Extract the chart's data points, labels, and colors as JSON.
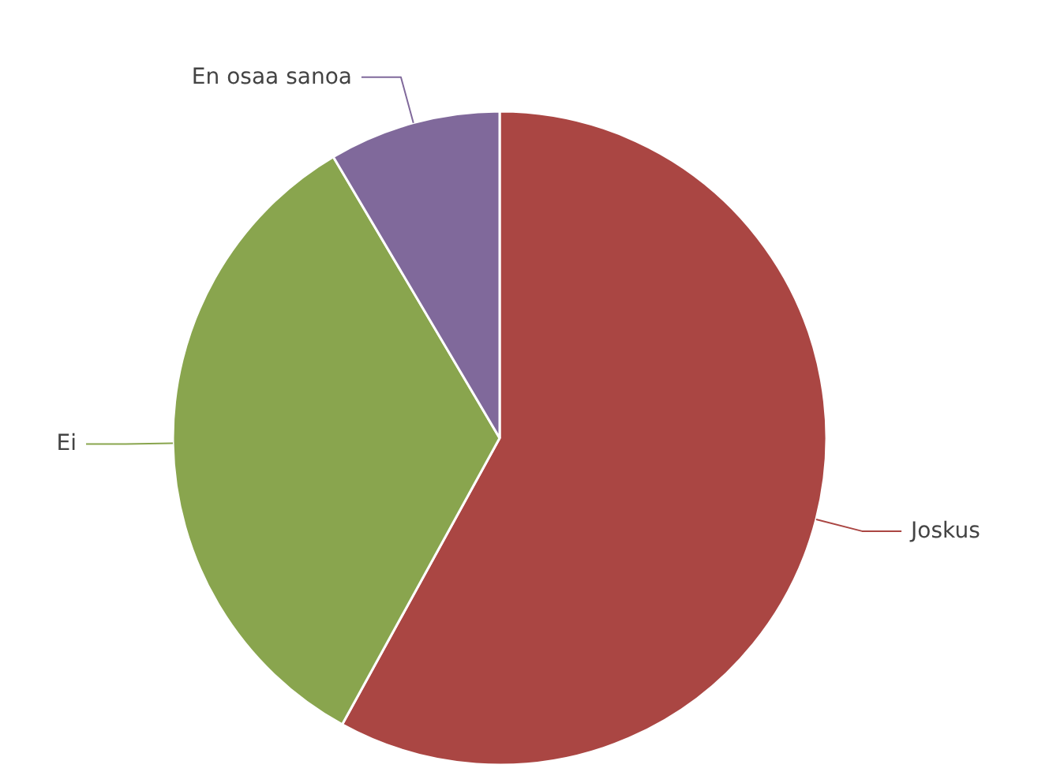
{
  "chart_data": {
    "type": "pie",
    "categories": [
      "Joskus",
      "Ei",
      "En osaa sanoa"
    ],
    "values": [
      58,
      33.5,
      8.5
    ],
    "colors": [
      "#aa4643",
      "#89a54e",
      "#80699b"
    ]
  }
}
